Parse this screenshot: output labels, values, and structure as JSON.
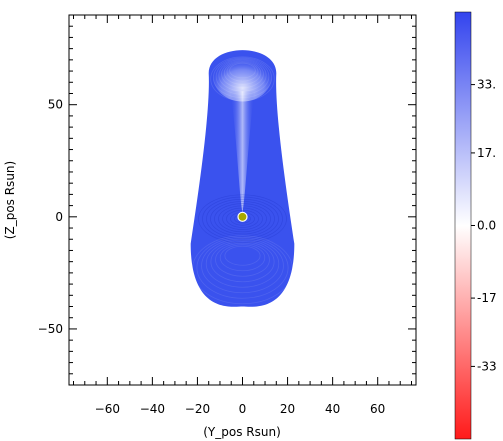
{
  "chart_data": {
    "type": "heatmap",
    "title": "",
    "xlabel": "(Y_pos Rsun)",
    "ylabel": "(Z_pos Rsun)",
    "xlim": [
      -77,
      77
    ],
    "ylim": [
      -75,
      90
    ],
    "x_ticks": [
      -60,
      -40,
      -20,
      0,
      20,
      40,
      60
    ],
    "x_tick_labels": [
      "−60",
      "−40",
      "−20",
      "0",
      "20",
      "40",
      "60"
    ],
    "y_ticks": [
      50,
      0,
      -50
    ],
    "y_tick_labels": [
      "50",
      "0",
      "−50"
    ],
    "colorbar": {
      "range": [
        -50,
        50
      ],
      "ticks": [
        33,
        17,
        0,
        -17,
        -33
      ],
      "tick_labels": [
        "33.",
        "17.",
        "0.0",
        "-17",
        "-33"
      ],
      "colors": {
        "low": "#ff2020",
        "mid": "#ffffff",
        "high": "#3344ee"
      }
    },
    "shape": {
      "description_color": "#3a52ee",
      "head_center": [
        0,
        64
      ],
      "head_radius": 15.5,
      "bulb_center": [
        0,
        -12
      ],
      "bulb_radius": 23,
      "body_x_at_top": [
        -15,
        15
      ],
      "top_y": 76,
      "bottom_y": -40
    },
    "marker": {
      "x": 0,
      "y": 0,
      "color": "#a8a800"
    }
  }
}
